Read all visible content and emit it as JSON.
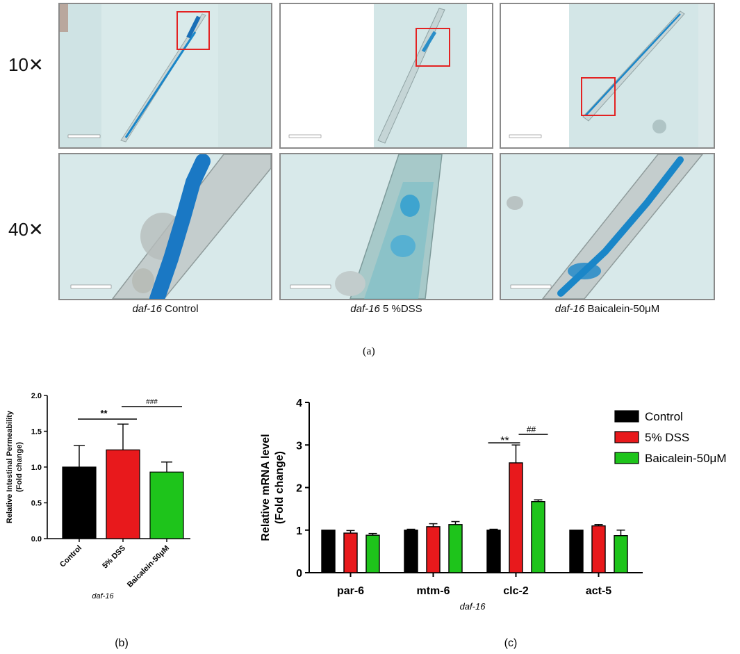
{
  "figure_a": {
    "row_labels": [
      "10✕",
      "40✕"
    ],
    "columns": [
      {
        "gene": "daf-16",
        "condition": "Control"
      },
      {
        "gene": "daf-16",
        "condition": "5 %DSS"
      },
      {
        "gene": "daf-16",
        "condition": "Baicalein-50μM"
      }
    ],
    "panel_label": "(a)"
  },
  "colors": {
    "control": "#000000",
    "dss": "#e8191c",
    "baicalein": "#1ec41b",
    "box": "#e32222",
    "stain": "#1a86c8"
  },
  "chart_data": [
    {
      "type": "bar",
      "panel_label": "(b)",
      "categories": [
        "Control",
        "5% DSS",
        "Baicalein-50μM"
      ],
      "values": [
        1.0,
        1.24,
        0.93
      ],
      "errors": [
        0.3,
        0.36,
        0.14
      ],
      "colors": [
        "#000000",
        "#e8191c",
        "#1ec41b"
      ],
      "ylabel": "Relative Intestinal Permeability (Fold change)",
      "ylabel_line1": "Relative Intestinal Permeability",
      "ylabel_line2": "(Fold change)",
      "xlabel": "daf-16",
      "ylim": [
        0,
        2.0
      ],
      "yticks": [
        "0.0",
        "0.5",
        "1.0",
        "1.5",
        "2.0"
      ],
      "annotations": [
        {
          "text": "**",
          "from": "Control",
          "to": "5% DSS"
        },
        {
          "text": "###",
          "from": "5% DSS",
          "to": "Baicalein-50μM"
        }
      ]
    },
    {
      "type": "bar",
      "panel_label": "(c)",
      "categories": [
        "par-6",
        "mtm-6",
        "clc-2",
        "act-5"
      ],
      "series": [
        {
          "name": "Control",
          "values": [
            1.0,
            1.0,
            1.0,
            1.0
          ],
          "errors": [
            0.0,
            0.02,
            0.02,
            0.0
          ]
        },
        {
          "name": "5% DSS",
          "values": [
            0.93,
            1.08,
            2.58,
            1.1
          ],
          "errors": [
            0.06,
            0.07,
            0.42,
            0.03
          ]
        },
        {
          "name": "Baicalein-50μM",
          "values": [
            0.88,
            1.13,
            1.67,
            0.87
          ],
          "errors": [
            0.04,
            0.07,
            0.04,
            0.13
          ]
        }
      ],
      "ylabel": "Relative mRNA level (Fold change)",
      "ylabel_line1": "Relative mRNA level",
      "ylabel_line2": "(Fold change)",
      "xlabel": "daf-16",
      "ylim": [
        0,
        4
      ],
      "yticks": [
        "0",
        "1",
        "2",
        "3",
        "4"
      ],
      "legend_position": "right",
      "annotations": [
        {
          "text": "**",
          "category": "clc-2",
          "from": "Control",
          "to": "5% DSS"
        },
        {
          "text": "##",
          "category": "clc-2",
          "from": "5% DSS",
          "to": "Baicalein-50μM"
        }
      ]
    }
  ]
}
